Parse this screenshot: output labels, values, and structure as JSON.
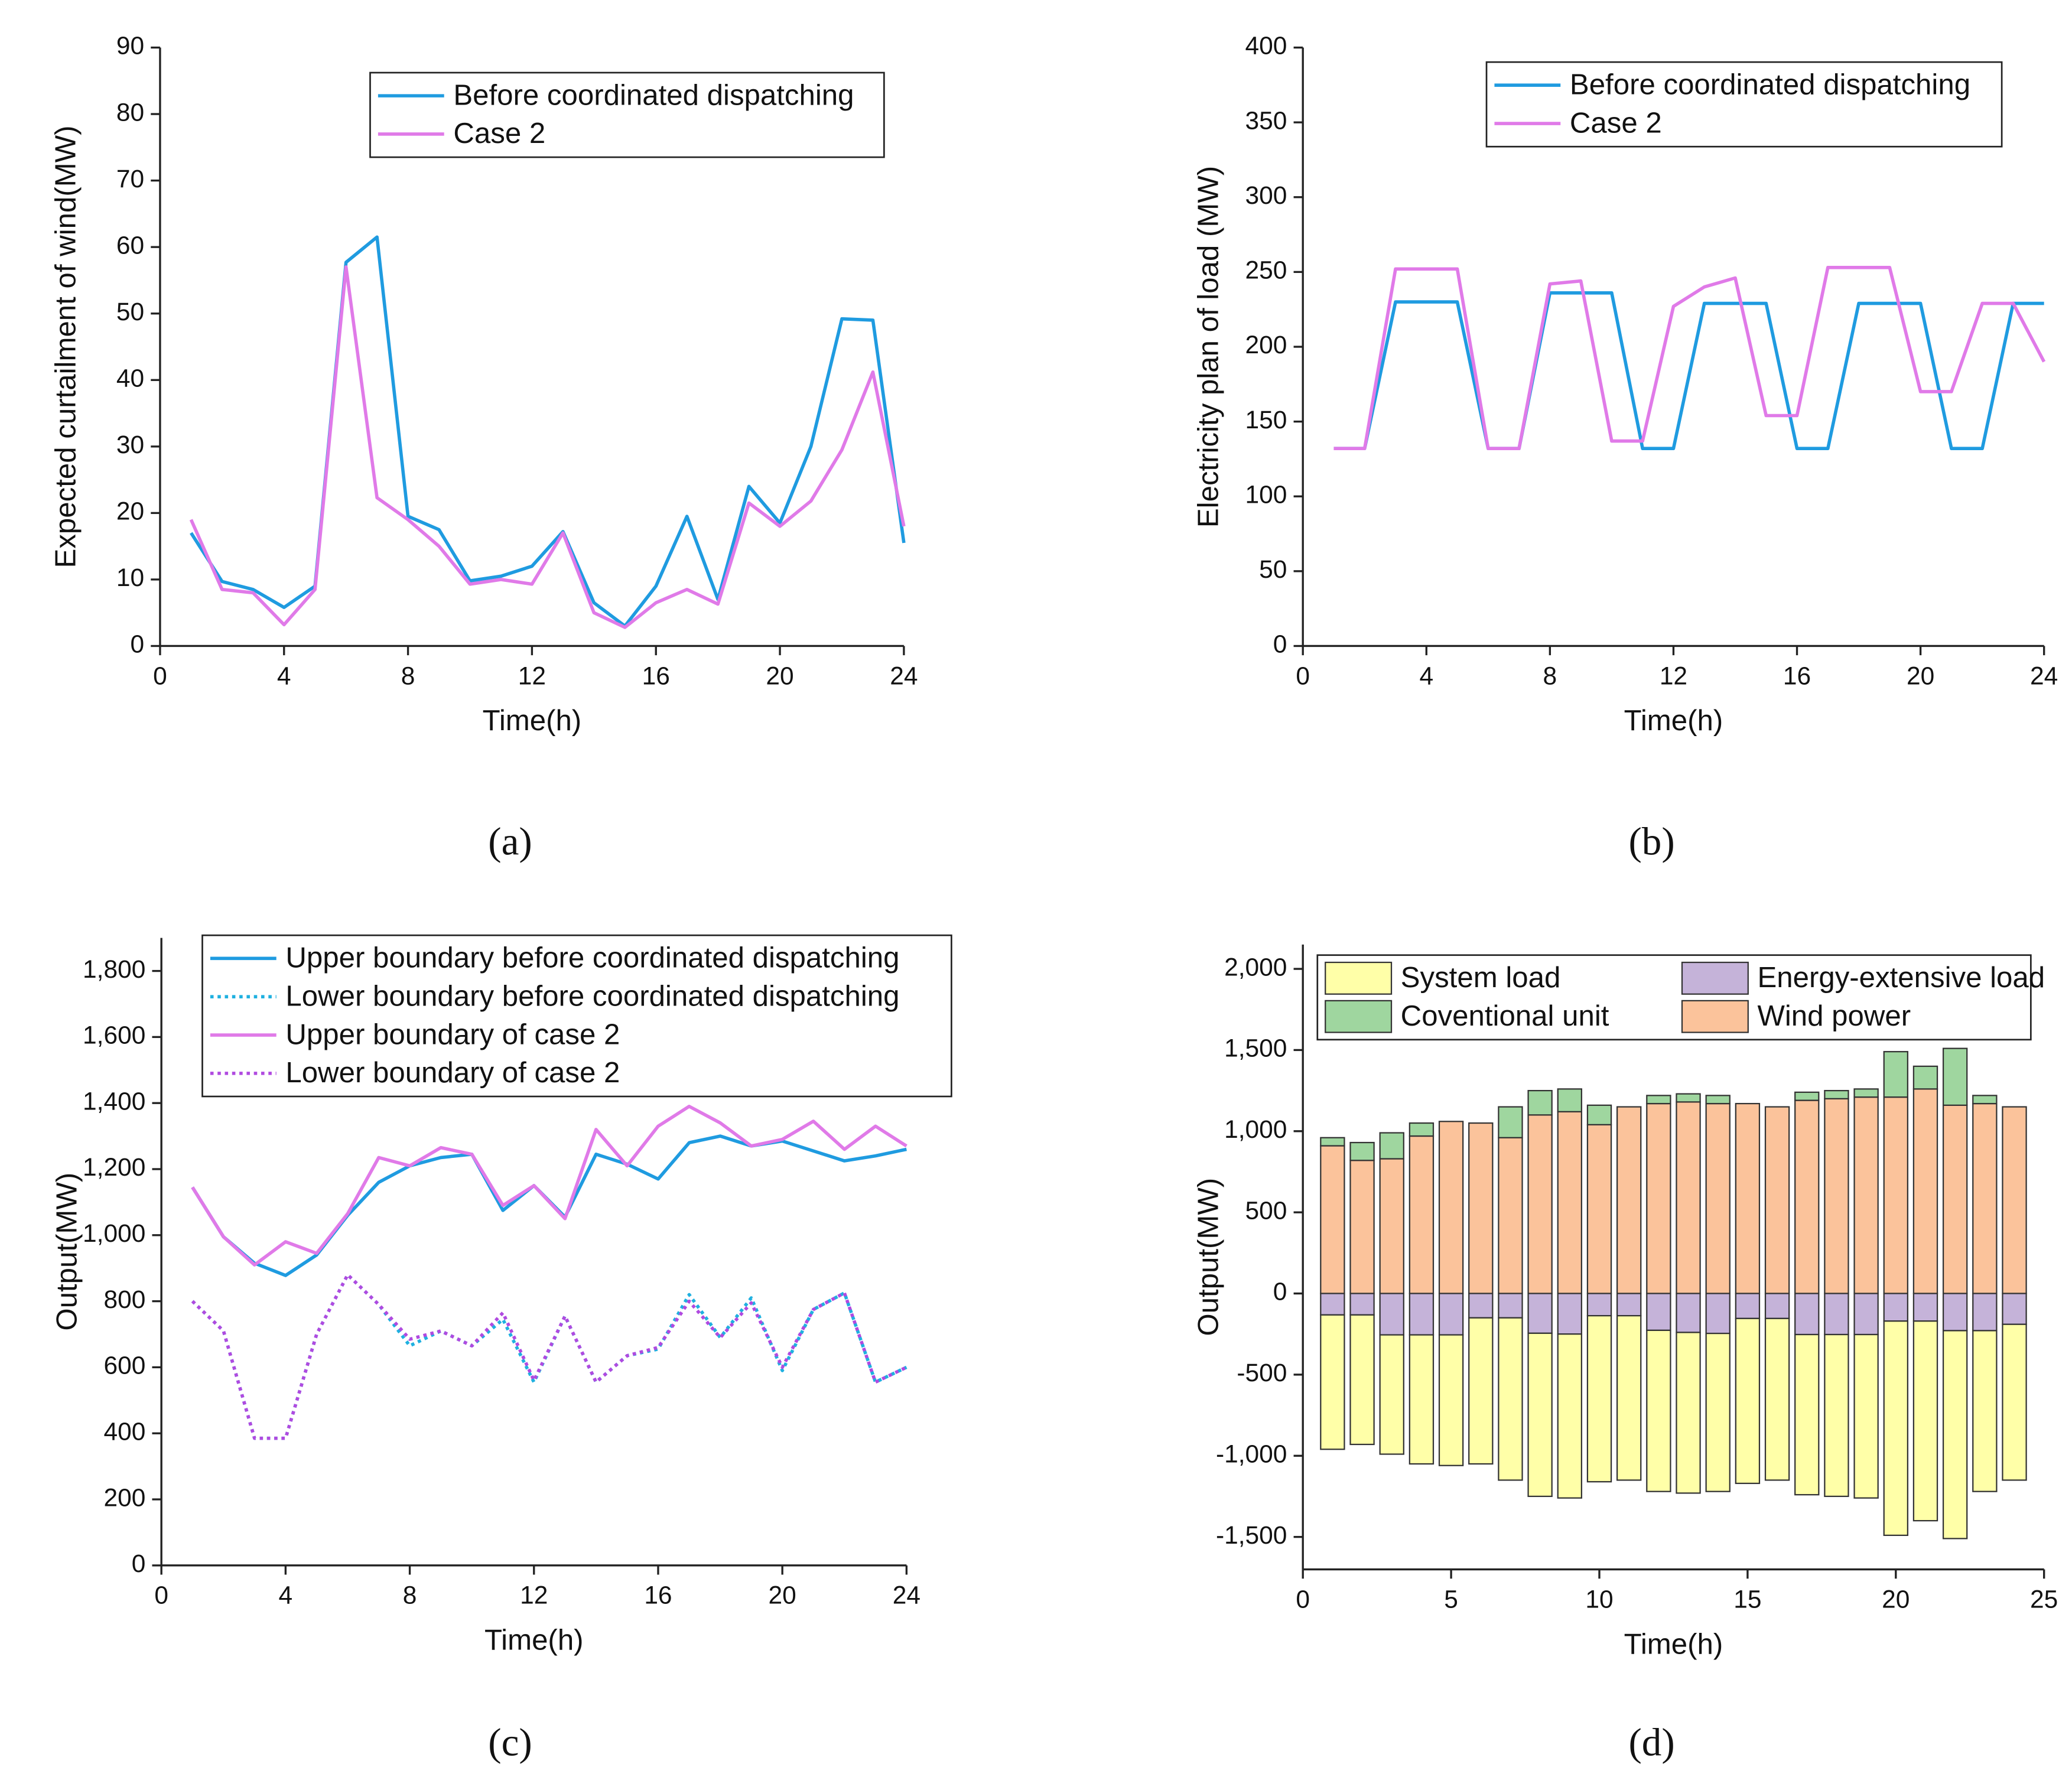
{
  "chart_data": [
    {
      "type": "line",
      "caption": "(a)",
      "xlabel": "Time(h)",
      "ylabel": "Expected curtailment of wind(MW)",
      "x": [
        1,
        2,
        3,
        4,
        5,
        6,
        7,
        8,
        9,
        10,
        11,
        12,
        13,
        14,
        15,
        16,
        17,
        18,
        19,
        20,
        21,
        22,
        23,
        24
      ],
      "xlim": [
        0,
        24
      ],
      "xticks": [
        0,
        4,
        8,
        12,
        16,
        20,
        24
      ],
      "ylim": [
        0,
        90
      ],
      "yticks": [
        0,
        10,
        20,
        30,
        40,
        50,
        60,
        70,
        80,
        90
      ],
      "series": [
        {
          "name": "Before coordinated dispatching",
          "color": "#1f9be0",
          "values": [
            17,
            9.7,
            8.5,
            5.8,
            9,
            57.7,
            61.5,
            19.5,
            17.5,
            9.8,
            10.5,
            12,
            17.2,
            6.5,
            3,
            9,
            19.5,
            7,
            24,
            18.5,
            30,
            49.2,
            49,
            15.5
          ]
        },
        {
          "name": "Case 2",
          "color": "#e07ae8",
          "values": [
            19,
            8.5,
            8,
            3.2,
            8.5,
            57,
            22.3,
            19,
            15,
            9.3,
            10,
            9.3,
            17,
            5,
            2.8,
            6.5,
            8.5,
            6.3,
            21.5,
            18,
            21.8,
            29.5,
            41.2,
            18
          ]
        }
      ]
    },
    {
      "type": "line",
      "caption": "(b)",
      "xlabel": "Time(h)",
      "ylabel": "Electricity plan of load (MW)",
      "x": [
        1,
        2,
        3,
        4,
        5,
        6,
        7,
        8,
        9,
        10,
        11,
        12,
        13,
        14,
        15,
        16,
        17,
        18,
        19,
        20,
        21,
        22,
        23,
        24
      ],
      "xlim": [
        0,
        24
      ],
      "xticks": [
        0,
        4,
        8,
        12,
        16,
        20,
        24
      ],
      "ylim": [
        0,
        400
      ],
      "yticks": [
        0,
        50,
        100,
        150,
        200,
        250,
        300,
        350,
        400
      ],
      "series": [
        {
          "name": "Before coordinated dispatching",
          "color": "#1f9be0",
          "values": [
            132,
            132,
            230,
            230,
            230,
            132,
            132,
            236,
            236,
            236,
            132,
            132,
            229,
            229,
            229,
            132,
            132,
            229,
            229,
            229,
            132,
            132,
            229,
            229
          ]
        },
        {
          "name": "Case 2",
          "color": "#e07ae8",
          "values": [
            132,
            132,
            252,
            252,
            252,
            132,
            132,
            242,
            244,
            137,
            137,
            227,
            240,
            246,
            154,
            154,
            253,
            253,
            253,
            170,
            170,
            229,
            229,
            190
          ]
        }
      ]
    },
    {
      "type": "line",
      "caption": "(c)",
      "xlabel": "Time(h)",
      "ylabel": "Output(MW)",
      "x": [
        1,
        2,
        3,
        4,
        5,
        6,
        7,
        8,
        9,
        10,
        11,
        12,
        13,
        14,
        15,
        16,
        17,
        18,
        19,
        20,
        21,
        22,
        23,
        24
      ],
      "xlim": [
        0,
        24
      ],
      "xticks": [
        0,
        4,
        8,
        12,
        16,
        20,
        24
      ],
      "ylim": [
        0,
        1900
      ],
      "yticks": [
        0,
        200,
        400,
        600,
        800,
        {
          "value": 1000,
          "label": "1,000"
        },
        {
          "value": 1200,
          "label": "1,200"
        },
        {
          "value": 1400,
          "label": "1,400"
        },
        {
          "value": 1600,
          "label": "1,600"
        },
        {
          "value": 1800,
          "label": "1,800"
        }
      ],
      "series": [
        {
          "name": "Upper boundary before coordinated dispatching",
          "color": "#1f9be0",
          "dashed": false,
          "values": [
            1145,
            995,
            915,
            878,
            940,
            1060,
            1160,
            1210,
            1235,
            1245,
            1075,
            1150,
            1055,
            1245,
            1215,
            1170,
            1280,
            1300,
            1270,
            1285,
            1255,
            1225,
            1240,
            1260
          ]
        },
        {
          "name": "Lower boundary before coordinated dispatching",
          "color": "#1fb0e0",
          "dashed": true,
          "values": [
            800,
            710,
            385,
            385,
            700,
            880,
            790,
            665,
            710,
            665,
            745,
            555,
            755,
            555,
            635,
            655,
            820,
            690,
            810,
            590,
            775,
            825,
            555,
            600
          ]
        },
        {
          "name": "Upper boundary of case 2",
          "color": "#e07ae8",
          "dashed": false,
          "values": [
            1145,
            995,
            910,
            980,
            945,
            1065,
            1235,
            1210,
            1265,
            1245,
            1090,
            1150,
            1050,
            1320,
            1210,
            1330,
            1390,
            1340,
            1270,
            1290,
            1345,
            1260,
            1330,
            1270
          ]
        },
        {
          "name": "Lower boundary of case 2",
          "color": "#b04ae0",
          "dashed": true,
          "values": [
            800,
            710,
            385,
            385,
            700,
            880,
            790,
            685,
            710,
            665,
            765,
            560,
            755,
            555,
            635,
            660,
            800,
            690,
            795,
            600,
            775,
            825,
            555,
            600
          ]
        }
      ]
    },
    {
      "type": "stacked_bar",
      "caption": "(d)",
      "xlabel": "Time(h)",
      "ylabel": "Output(MW)",
      "x": [
        1,
        2,
        3,
        4,
        5,
        6,
        7,
        8,
        9,
        10,
        11,
        12,
        13,
        14,
        15,
        16,
        17,
        18,
        19,
        20,
        21,
        22,
        23,
        24
      ],
      "xlim": [
        0,
        25
      ],
      "xticks": [
        0,
        5,
        10,
        15,
        20,
        25
      ],
      "ylim": [
        -1700,
        2150
      ],
      "yticks": [
        {
          "value": -1500,
          "label": "-1,500"
        },
        {
          "value": -1000,
          "label": "-1,000"
        },
        -500,
        0,
        500,
        {
          "value": 1000,
          "label": "1,000"
        },
        {
          "value": 1500,
          "label": "1,500"
        },
        {
          "value": 2000,
          "label": "2,000"
        }
      ],
      "series": [
        {
          "name": "System load",
          "color": "#ffffa8",
          "values": [
            -828,
            -798,
            -735,
            -795,
            -805,
            -900,
            -1000,
            -1005,
            -1010,
            -1023,
            -1013,
            -993,
            -990,
            -974,
            -1016,
            -996,
            -987,
            -997,
            -1007,
            -1320,
            -1230,
            -1281,
            -991,
            -960
          ]
        },
        {
          "name": "Energy-extensive load",
          "color": "#c5b3d9",
          "values": [
            -132,
            -132,
            -255,
            -255,
            -255,
            -150,
            -150,
            -245,
            -250,
            -137,
            -137,
            -227,
            -240,
            -246,
            -154,
            -154,
            -253,
            -253,
            -253,
            -170,
            -170,
            -229,
            -229,
            -190
          ]
        },
        {
          "name": "Coventional unit",
          "color": "#9fd69f",
          "values": [
            50,
            110,
            160,
            80,
            0,
            0,
            190,
            150,
            140,
            120,
            0,
            50,
            50,
            50,
            0,
            0,
            50,
            50,
            50,
            280,
            140,
            350,
            50,
            0
          ]
        },
        {
          "name": "Wind power",
          "color": "#fbc39b",
          "values": [
            910,
            820,
            830,
            970,
            1060,
            1050,
            960,
            1100,
            1120,
            1040,
            1150,
            1170,
            1180,
            1170,
            1170,
            1150,
            1190,
            1200,
            1210,
            1210,
            1260,
            1160,
            1170,
            1150
          ]
        }
      ]
    }
  ]
}
